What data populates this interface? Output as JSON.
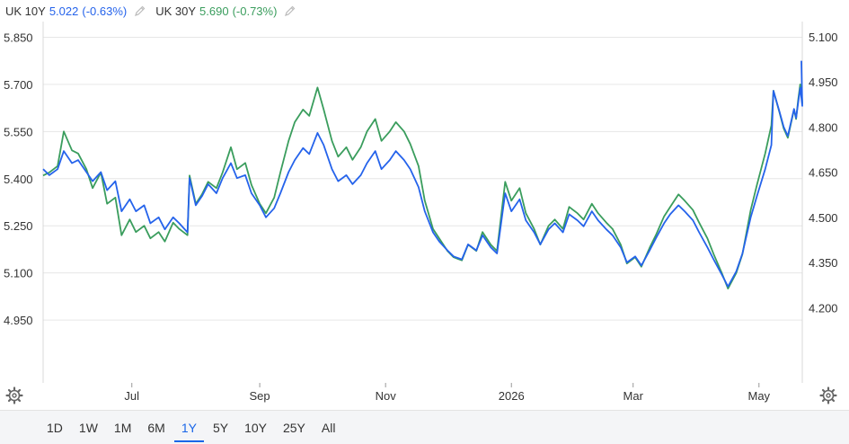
{
  "legend": [
    {
      "name": "UK 10Y",
      "value": "5.022",
      "change": "(-0.63%)",
      "color": "#2563eb",
      "icon": "pencil-icon"
    },
    {
      "name": "UK 30Y",
      "value": "5.690",
      "change": "(-0.73%)",
      "color": "#3a9d5d",
      "icon": "pencil-icon"
    }
  ],
  "icons": {
    "settings_left": "gear-icon",
    "settings_right": "gear-icon"
  },
  "ranges": {
    "items": [
      "1D",
      "1W",
      "1M",
      "6M",
      "1Y",
      "5Y",
      "10Y",
      "25Y",
      "All"
    ],
    "active": "1Y"
  },
  "chart_data": {
    "type": "line",
    "grid": "horizontal",
    "x_range": [
      "2025-05-19",
      "2026-05-22"
    ],
    "x_ticks": [
      {
        "date": "2025-07-01",
        "label": "Jul"
      },
      {
        "date": "2025-09-01",
        "label": "Sep"
      },
      {
        "date": "2025-11-01",
        "label": "Nov"
      },
      {
        "date": "2026-01-01",
        "label": "2026"
      },
      {
        "date": "2026-03-01",
        "label": "Mar"
      },
      {
        "date": "2026-05-01",
        "label": "May"
      }
    ],
    "y_left": {
      "min": 4.75,
      "max": 5.9,
      "ticks": [
        "4.950",
        "5.100",
        "5.250",
        "5.400",
        "5.550",
        "5.700",
        "5.850"
      ],
      "series": "UK 30Y"
    },
    "y_right": {
      "min": 3.95,
      "max": 5.15,
      "ticks": [
        "4.200",
        "4.350",
        "4.500",
        "4.650",
        "4.800",
        "4.950",
        "5.100"
      ],
      "series": "UK 10Y"
    },
    "series": [
      {
        "name": "UK 10Y",
        "axis": "right",
        "color": "#2563eb",
        "points": [
          [
            "2025-05-19",
            4.66
          ],
          [
            "2025-05-22",
            4.64
          ],
          [
            "2025-05-26",
            4.66
          ],
          [
            "2025-05-29",
            4.72
          ],
          [
            "2025-06-02",
            4.68
          ],
          [
            "2025-06-05",
            4.69
          ],
          [
            "2025-06-09",
            4.65
          ],
          [
            "2025-06-12",
            4.62
          ],
          [
            "2025-06-16",
            4.65
          ],
          [
            "2025-06-19",
            4.59
          ],
          [
            "2025-06-23",
            4.62
          ],
          [
            "2025-06-26",
            4.52
          ],
          [
            "2025-06-30",
            4.56
          ],
          [
            "2025-07-03",
            4.52
          ],
          [
            "2025-07-07",
            4.54
          ],
          [
            "2025-07-10",
            4.48
          ],
          [
            "2025-07-14",
            4.5
          ],
          [
            "2025-07-17",
            4.46
          ],
          [
            "2025-07-21",
            4.5
          ],
          [
            "2025-07-24",
            4.48
          ],
          [
            "2025-07-28",
            4.45
          ],
          [
            "2025-07-29",
            4.63
          ],
          [
            "2025-08-01",
            4.54
          ],
          [
            "2025-08-04",
            4.57
          ],
          [
            "2025-08-07",
            4.61
          ],
          [
            "2025-08-11",
            4.58
          ],
          [
            "2025-08-14",
            4.63
          ],
          [
            "2025-08-18",
            4.68
          ],
          [
            "2025-08-21",
            4.63
          ],
          [
            "2025-08-25",
            4.64
          ],
          [
            "2025-08-28",
            4.58
          ],
          [
            "2025-09-01",
            4.54
          ],
          [
            "2025-09-04",
            4.5
          ],
          [
            "2025-09-08",
            4.53
          ],
          [
            "2025-09-11",
            4.58
          ],
          [
            "2025-09-15",
            4.65
          ],
          [
            "2025-09-18",
            4.69
          ],
          [
            "2025-09-22",
            4.73
          ],
          [
            "2025-09-25",
            4.71
          ],
          [
            "2025-09-29",
            4.78
          ],
          [
            "2025-10-02",
            4.74
          ],
          [
            "2025-10-06",
            4.66
          ],
          [
            "2025-10-09",
            4.62
          ],
          [
            "2025-10-13",
            4.64
          ],
          [
            "2025-10-16",
            4.61
          ],
          [
            "2025-10-20",
            4.64
          ],
          [
            "2025-10-23",
            4.68
          ],
          [
            "2025-10-27",
            4.72
          ],
          [
            "2025-10-30",
            4.66
          ],
          [
            "2025-11-03",
            4.69
          ],
          [
            "2025-11-06",
            4.72
          ],
          [
            "2025-11-10",
            4.69
          ],
          [
            "2025-11-13",
            4.66
          ],
          [
            "2025-11-17",
            4.6
          ],
          [
            "2025-11-20",
            4.52
          ],
          [
            "2025-11-24",
            4.45
          ],
          [
            "2025-11-27",
            4.42
          ],
          [
            "2025-12-01",
            4.39
          ],
          [
            "2025-12-04",
            4.37
          ],
          [
            "2025-12-08",
            4.36
          ],
          [
            "2025-12-11",
            4.41
          ],
          [
            "2025-12-15",
            4.39
          ],
          [
            "2025-12-18",
            4.44
          ],
          [
            "2025-12-22",
            4.4
          ],
          [
            "2025-12-25",
            4.38
          ],
          [
            "2025-12-29",
            4.58
          ],
          [
            "2026-01-01",
            4.52
          ],
          [
            "2026-01-05",
            4.56
          ],
          [
            "2026-01-08",
            4.49
          ],
          [
            "2026-01-12",
            4.45
          ],
          [
            "2026-01-15",
            4.41
          ],
          [
            "2026-01-19",
            4.46
          ],
          [
            "2026-01-22",
            4.48
          ],
          [
            "2026-01-26",
            4.45
          ],
          [
            "2026-01-29",
            4.51
          ],
          [
            "2026-02-02",
            4.49
          ],
          [
            "2026-02-05",
            4.47
          ],
          [
            "2026-02-09",
            4.52
          ],
          [
            "2026-02-12",
            4.49
          ],
          [
            "2026-02-16",
            4.46
          ],
          [
            "2026-02-19",
            4.44
          ],
          [
            "2026-02-23",
            4.4
          ],
          [
            "2026-02-26",
            4.35
          ],
          [
            "2026-03-02",
            4.37
          ],
          [
            "2026-03-05",
            4.34
          ],
          [
            "2026-03-09",
            4.39
          ],
          [
            "2026-03-12",
            4.43
          ],
          [
            "2026-03-16",
            4.48
          ],
          [
            "2026-03-19",
            4.51
          ],
          [
            "2026-03-23",
            4.54
          ],
          [
            "2026-03-26",
            4.52
          ],
          [
            "2026-03-30",
            4.49
          ],
          [
            "2026-04-02",
            4.45
          ],
          [
            "2026-04-06",
            4.4
          ],
          [
            "2026-04-09",
            4.36
          ],
          [
            "2026-04-13",
            4.31
          ],
          [
            "2026-04-16",
            4.27
          ],
          [
            "2026-04-20",
            4.32
          ],
          [
            "2026-04-23",
            4.38
          ],
          [
            "2026-04-27",
            4.5
          ],
          [
            "2026-04-30",
            4.57
          ],
          [
            "2026-05-04",
            4.66
          ],
          [
            "2026-05-07",
            4.74
          ],
          [
            "2026-05-08",
            4.92
          ],
          [
            "2026-05-11",
            4.85
          ],
          [
            "2026-05-13",
            4.8
          ],
          [
            "2026-05-15",
            4.77
          ],
          [
            "2026-05-18",
            4.86
          ],
          [
            "2026-05-19",
            4.83
          ],
          [
            "2026-05-20",
            4.88
          ],
          [
            "2026-05-21",
            4.93
          ],
          [
            "2026-05-22",
            4.87
          ],
          [
            "2026-05-22",
            5.02
          ]
        ]
      },
      {
        "name": "UK 30Y",
        "axis": "left",
        "color": "#3a9d5d",
        "points": [
          [
            "2025-05-19",
            5.41
          ],
          [
            "2025-05-22",
            5.42
          ],
          [
            "2025-05-26",
            5.44
          ],
          [
            "2025-05-29",
            5.55
          ],
          [
            "2025-06-02",
            5.49
          ],
          [
            "2025-06-05",
            5.48
          ],
          [
            "2025-06-09",
            5.43
          ],
          [
            "2025-06-12",
            5.37
          ],
          [
            "2025-06-16",
            5.42
          ],
          [
            "2025-06-19",
            5.32
          ],
          [
            "2025-06-23",
            5.34
          ],
          [
            "2025-06-26",
            5.22
          ],
          [
            "2025-06-30",
            5.27
          ],
          [
            "2025-07-03",
            5.23
          ],
          [
            "2025-07-07",
            5.25
          ],
          [
            "2025-07-10",
            5.21
          ],
          [
            "2025-07-14",
            5.23
          ],
          [
            "2025-07-17",
            5.2
          ],
          [
            "2025-07-21",
            5.26
          ],
          [
            "2025-07-24",
            5.24
          ],
          [
            "2025-07-28",
            5.22
          ],
          [
            "2025-07-29",
            5.41
          ],
          [
            "2025-08-01",
            5.32
          ],
          [
            "2025-08-04",
            5.35
          ],
          [
            "2025-08-07",
            5.39
          ],
          [
            "2025-08-11",
            5.37
          ],
          [
            "2025-08-14",
            5.42
          ],
          [
            "2025-08-18",
            5.5
          ],
          [
            "2025-08-21",
            5.43
          ],
          [
            "2025-08-25",
            5.45
          ],
          [
            "2025-08-28",
            5.38
          ],
          [
            "2025-09-01",
            5.32
          ],
          [
            "2025-09-04",
            5.29
          ],
          [
            "2025-09-08",
            5.34
          ],
          [
            "2025-09-11",
            5.42
          ],
          [
            "2025-09-15",
            5.52
          ],
          [
            "2025-09-18",
            5.58
          ],
          [
            "2025-09-22",
            5.62
          ],
          [
            "2025-09-25",
            5.6
          ],
          [
            "2025-09-29",
            5.69
          ],
          [
            "2025-10-02",
            5.62
          ],
          [
            "2025-10-06",
            5.52
          ],
          [
            "2025-10-09",
            5.47
          ],
          [
            "2025-10-13",
            5.5
          ],
          [
            "2025-10-16",
            5.46
          ],
          [
            "2025-10-20",
            5.5
          ],
          [
            "2025-10-23",
            5.55
          ],
          [
            "2025-10-27",
            5.59
          ],
          [
            "2025-10-30",
            5.52
          ],
          [
            "2025-11-03",
            5.55
          ],
          [
            "2025-11-06",
            5.58
          ],
          [
            "2025-11-10",
            5.55
          ],
          [
            "2025-11-13",
            5.51
          ],
          [
            "2025-11-17",
            5.44
          ],
          [
            "2025-11-20",
            5.33
          ],
          [
            "2025-11-24",
            5.24
          ],
          [
            "2025-11-27",
            5.21
          ],
          [
            "2025-12-01",
            5.17
          ],
          [
            "2025-12-04",
            5.15
          ],
          [
            "2025-12-08",
            5.14
          ],
          [
            "2025-12-11",
            5.19
          ],
          [
            "2025-12-15",
            5.17
          ],
          [
            "2025-12-18",
            5.23
          ],
          [
            "2025-12-22",
            5.19
          ],
          [
            "2025-12-25",
            5.17
          ],
          [
            "2025-12-29",
            5.39
          ],
          [
            "2026-01-01",
            5.33
          ],
          [
            "2026-01-05",
            5.37
          ],
          [
            "2026-01-08",
            5.29
          ],
          [
            "2026-01-12",
            5.24
          ],
          [
            "2026-01-15",
            5.19
          ],
          [
            "2026-01-19",
            5.25
          ],
          [
            "2026-01-22",
            5.27
          ],
          [
            "2026-01-26",
            5.24
          ],
          [
            "2026-01-29",
            5.31
          ],
          [
            "2026-02-02",
            5.29
          ],
          [
            "2026-02-05",
            5.27
          ],
          [
            "2026-02-09",
            5.32
          ],
          [
            "2026-02-12",
            5.29
          ],
          [
            "2026-02-16",
            5.26
          ],
          [
            "2026-02-19",
            5.24
          ],
          [
            "2026-02-23",
            5.19
          ],
          [
            "2026-02-26",
            5.13
          ],
          [
            "2026-03-02",
            5.15
          ],
          [
            "2026-03-05",
            5.12
          ],
          [
            "2026-03-09",
            5.18
          ],
          [
            "2026-03-12",
            5.22
          ],
          [
            "2026-03-16",
            5.28
          ],
          [
            "2026-03-19",
            5.31
          ],
          [
            "2026-03-23",
            5.35
          ],
          [
            "2026-03-26",
            5.33
          ],
          [
            "2026-03-30",
            5.3
          ],
          [
            "2026-04-02",
            5.26
          ],
          [
            "2026-04-06",
            5.21
          ],
          [
            "2026-04-09",
            5.16
          ],
          [
            "2026-04-13",
            5.1
          ],
          [
            "2026-04-16",
            5.05
          ],
          [
            "2026-04-20",
            5.1
          ],
          [
            "2026-04-23",
            5.16
          ],
          [
            "2026-04-27",
            5.3
          ],
          [
            "2026-04-30",
            5.38
          ],
          [
            "2026-05-04",
            5.48
          ],
          [
            "2026-05-07",
            5.57
          ],
          [
            "2026-05-08",
            5.68
          ],
          [
            "2026-05-11",
            5.61
          ],
          [
            "2026-05-13",
            5.56
          ],
          [
            "2026-05-15",
            5.53
          ],
          [
            "2026-05-18",
            5.62
          ],
          [
            "2026-05-19",
            5.59
          ],
          [
            "2026-05-20",
            5.65
          ],
          [
            "2026-05-21",
            5.7
          ],
          [
            "2026-05-22",
            5.64
          ],
          [
            "2026-05-22",
            5.69
          ]
        ]
      }
    ]
  }
}
